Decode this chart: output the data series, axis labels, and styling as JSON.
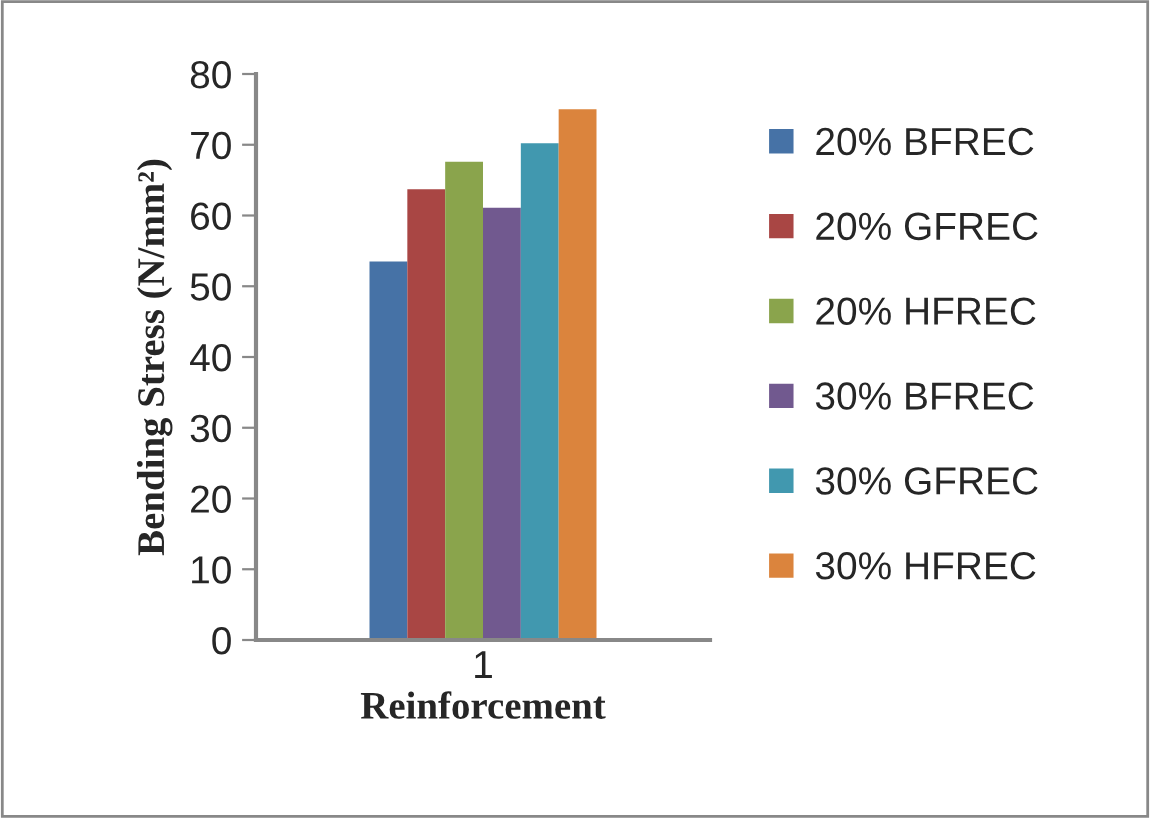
{
  "chart_data": {
    "type": "bar",
    "xlabel": "Reinforcement",
    "ylabel": "Bending Stress (N/mm²)",
    "categories": [
      "1"
    ],
    "series": [
      {
        "name": "20% BFREC",
        "color": "#4672a6",
        "values": [
          53.5
        ]
      },
      {
        "name": "20% GFREC",
        "color": "#a94644",
        "values": [
          63.7
        ]
      },
      {
        "name": "20% HFREC",
        "color": "#8aa44c",
        "values": [
          67.6
        ]
      },
      {
        "name": "30% BFREC",
        "color": "#71598f",
        "values": [
          61.1
        ]
      },
      {
        "name": "30% GFREC",
        "color": "#4198af",
        "values": [
          70.2
        ]
      },
      {
        "name": "30% HFREC",
        "color": "#db843d",
        "values": [
          75.0
        ]
      }
    ],
    "ylim": [
      0,
      80
    ],
    "yticks": [
      0,
      10,
      20,
      30,
      40,
      50,
      60,
      70,
      80
    ],
    "grid": false,
    "legend": "right"
  }
}
